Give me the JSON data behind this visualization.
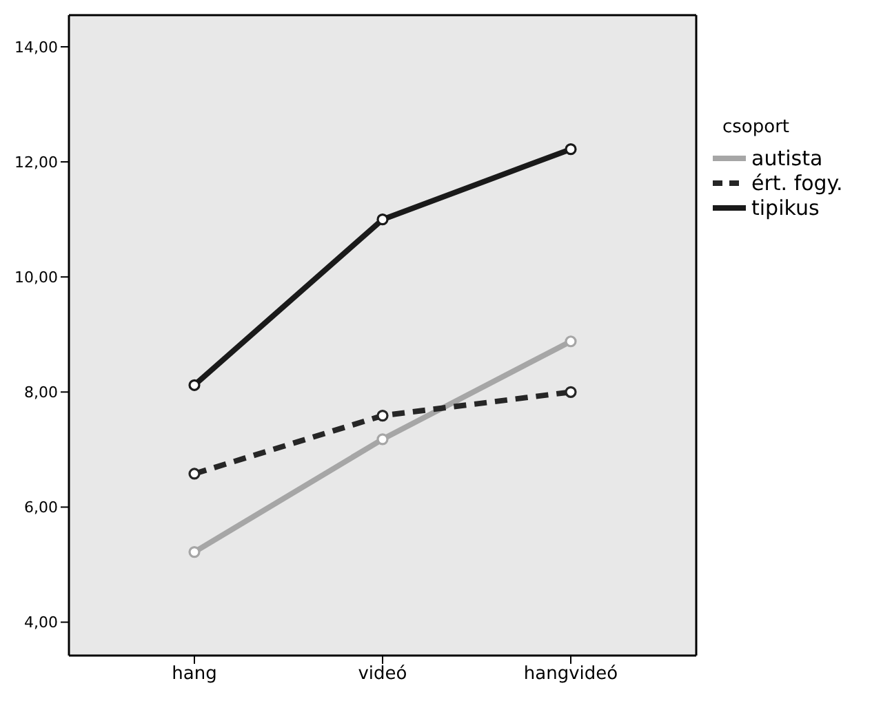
{
  "chart_data": {
    "type": "line",
    "categories": [
      "hang",
      "videó",
      "hangvideó"
    ],
    "series": [
      {
        "name": "autista",
        "color": "#a6a6a6",
        "values": [
          5.22,
          7.18,
          8.88
        ],
        "line_style": "solid"
      },
      {
        "name": "ért. fogy.",
        "color": "#262626",
        "values": [
          6.58,
          7.59,
          8.0
        ],
        "line_style": "dashed"
      },
      {
        "name": "tipikus",
        "color": "#1a1a1a",
        "values": [
          8.12,
          11.0,
          12.22
        ],
        "line_style": "solid"
      }
    ],
    "ylim": [
      3.42,
      14.55
    ],
    "yticks": [
      {
        "value": 4,
        "label": "4,00"
      },
      {
        "value": 6,
        "label": "6,00"
      },
      {
        "value": 8,
        "label": "8,00"
      },
      {
        "value": 10,
        "label": "10,00"
      },
      {
        "value": 12,
        "label": "12,00"
      },
      {
        "value": 14,
        "label": "14,00"
      }
    ],
    "legend_title": "csoport",
    "legend": "right",
    "grid": false,
    "marker": "circle"
  }
}
